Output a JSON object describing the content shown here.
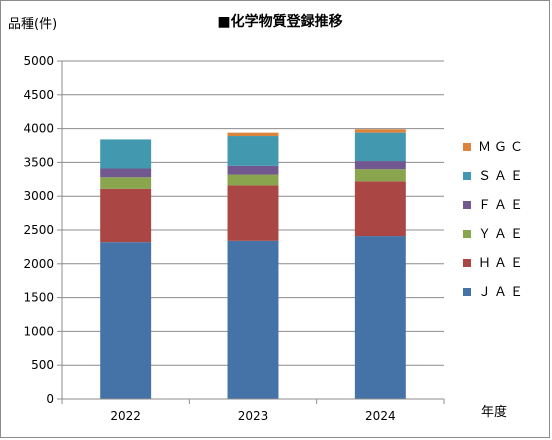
{
  "chart_data": {
    "type": "bar",
    "stacked": true,
    "title": "■化学物質登録推移",
    "ylabel": "品種(件)",
    "xlabel": "年度",
    "ylim": [
      0,
      5000
    ],
    "yticks": [
      0,
      500,
      1000,
      1500,
      2000,
      2500,
      3000,
      3500,
      4000,
      4500,
      5000
    ],
    "grid": true,
    "legend_position": "right",
    "categories": [
      "2022",
      "2023",
      "2024"
    ],
    "series": [
      {
        "name": "ＪＡＥ",
        "color": "#4572a7",
        "values": [
          2320,
          2340,
          2410
        ]
      },
      {
        "name": "ＨＡＥ",
        "color": "#aa4643",
        "values": [
          790,
          820,
          810
        ]
      },
      {
        "name": "ＹＡＥ",
        "color": "#89a54e",
        "values": [
          170,
          160,
          180
        ]
      },
      {
        "name": "ＦＡＥ",
        "color": "#71588f",
        "values": [
          130,
          130,
          120
        ]
      },
      {
        "name": "ＳＡＥ",
        "color": "#4198af",
        "values": [
          430,
          440,
          420
        ]
      },
      {
        "name": "ＭＧＣ",
        "color": "#db843d",
        "values": [
          0,
          50,
          50
        ]
      }
    ]
  }
}
